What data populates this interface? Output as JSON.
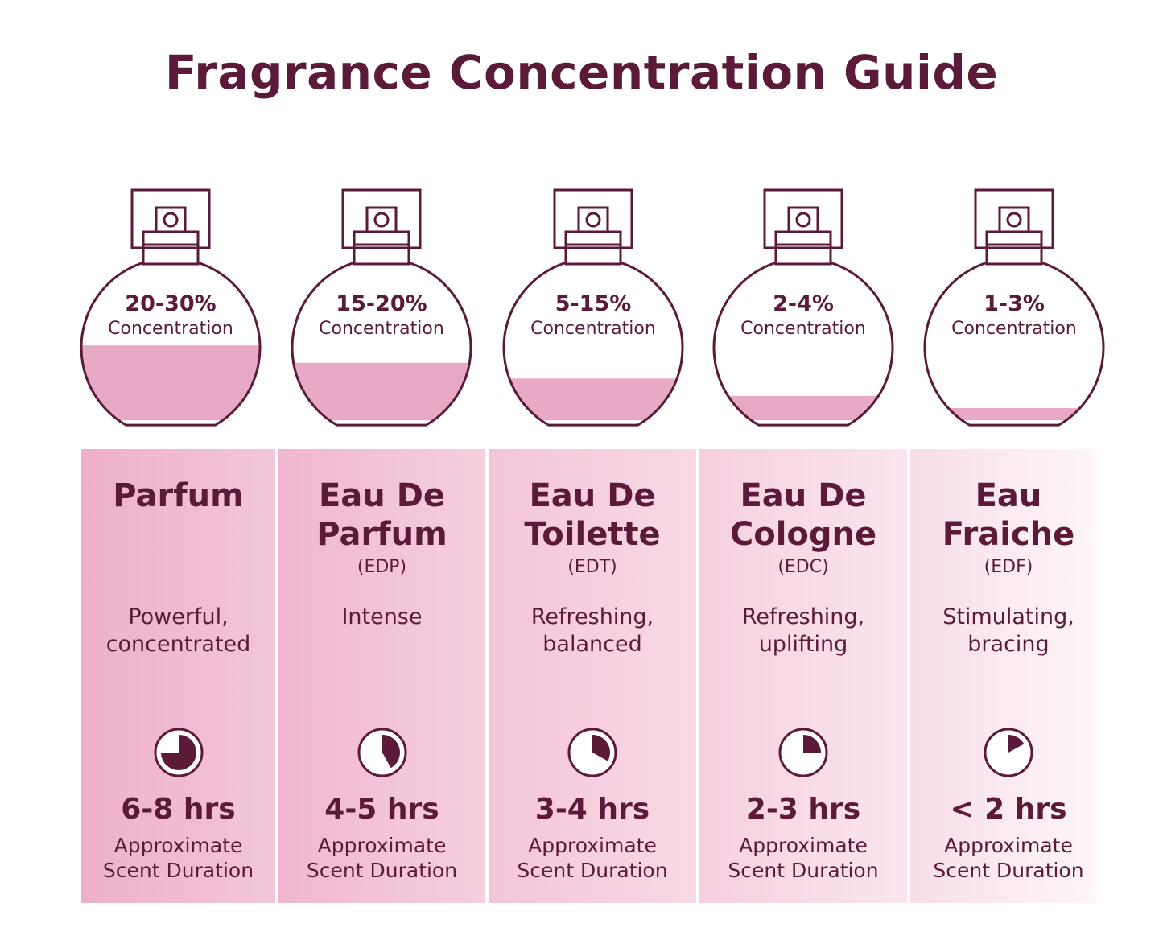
{
  "title": "Fragrance Concentration Guide",
  "colors": {
    "text": "#5a1a38",
    "liquid": "#e8a9c6",
    "outline": "#5a1a38",
    "clock_fill": "#5a1a38",
    "panel_dark": "#efb7cf",
    "panel_light": "#fbeef3"
  },
  "types": [
    {
      "concentration": "20-30%",
      "concentration_label": "Concentration",
      "fill_level": 0.43,
      "name": "Parfum",
      "abbreviation": "",
      "description": "Powerful,\nconcentrated",
      "duration": "6-8 hrs",
      "duration_label": "Approximate\nScent Duration",
      "duration_fraction": 0.75,
      "clock_icon": "clock-three-quarters-icon"
    },
    {
      "concentration": "15-20%",
      "concentration_label": "Concentration",
      "fill_level": 0.33,
      "name": "Eau De\nParfum",
      "abbreviation": "(EDP)",
      "description": "Intense",
      "duration": "4-5 hrs",
      "duration_label": "Approximate\nScent Duration",
      "duration_fraction": 0.42,
      "clock_icon": "clock-five-twelfths-icon"
    },
    {
      "concentration": "5-15%",
      "concentration_label": "Concentration",
      "fill_level": 0.24,
      "name": "Eau De\nToilette",
      "abbreviation": "(EDT)",
      "description": "Refreshing,\nbalanced",
      "duration": "3-4 hrs",
      "duration_label": "Approximate\nScent Duration",
      "duration_fraction": 0.33,
      "clock_icon": "clock-third-icon"
    },
    {
      "concentration": "2-4%",
      "concentration_label": "Concentration",
      "fill_level": 0.14,
      "name": "Eau De\nCologne",
      "abbreviation": "(EDC)",
      "description": "Refreshing,\nuplifting",
      "duration": "2-3 hrs",
      "duration_label": "Approximate\nScent Duration",
      "duration_fraction": 0.25,
      "clock_icon": "clock-quarter-icon"
    },
    {
      "concentration": "1-3%",
      "concentration_label": "Concentration",
      "fill_level": 0.07,
      "name": "Eau\nFraiche",
      "abbreviation": "(EDF)",
      "description": "Stimulating,\nbracing",
      "duration": "< 2 hrs",
      "duration_label": "Approximate\nScent Duration",
      "duration_fraction": 0.17,
      "clock_icon": "clock-sixth-icon"
    }
  ]
}
